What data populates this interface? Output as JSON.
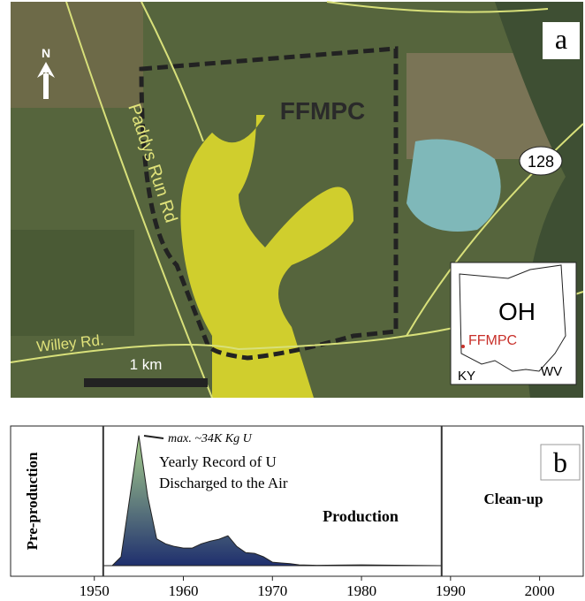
{
  "map": {
    "panel_label": "a",
    "north": "N",
    "site": "FFMPC",
    "road_1": "Paddys Run Rd",
    "road_2": "Willey Rd.",
    "scale": "1 km",
    "route": "128",
    "inset": {
      "state": "OH",
      "site": "FFMPC",
      "left": "KY",
      "right": "WV"
    }
  },
  "chart_data": {
    "type": "area",
    "panel_label": "b",
    "annotations": {
      "peak": "max. ~34K Kg U",
      "description_1": "Yearly Record of U",
      "description_2": "Discharged to the Air",
      "production": "Production",
      "cleanup": "Clean-up",
      "pre_production": "Pre-production"
    },
    "x": [
      1951,
      1952,
      1953,
      1954,
      1955,
      1956,
      1957,
      1958,
      1959,
      1960,
      1961,
      1962,
      1963,
      1964,
      1965,
      1966,
      1967,
      1968,
      1969,
      1970,
      1971,
      1972,
      1973,
      1975,
      1980,
      1985,
      1989
    ],
    "values": [
      0,
      0,
      2300,
      18000,
      34000,
      18000,
      7000,
      5700,
      5000,
      4600,
      4600,
      5700,
      6400,
      6900,
      7800,
      5000,
      3400,
      3200,
      2300,
      900,
      700,
      500,
      200,
      100,
      200,
      100,
      0
    ],
    "dividers": [
      1951,
      1989
    ],
    "xlim": [
      1940.6,
      2004.9
    ],
    "ylim": [
      0,
      36000
    ],
    "xticks": [
      1950,
      1960,
      1970,
      1980,
      1990,
      2000
    ],
    "colors": {
      "top": "#a8d08d",
      "bottom": "#1f2f6e"
    }
  }
}
